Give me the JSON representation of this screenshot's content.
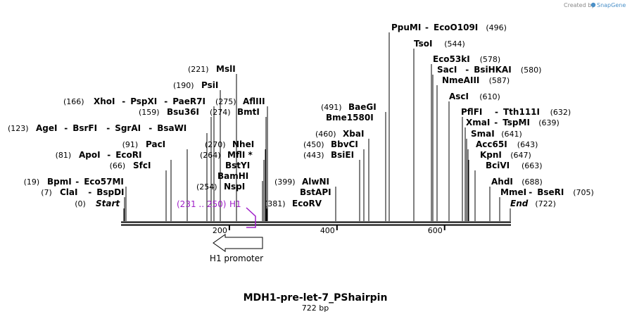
{
  "credit": {
    "prefix": "Created by",
    "brand": "SnapGene"
  },
  "map": {
    "title": "MDH1-pre-let-7_PShairpin",
    "length_label": "722 bp",
    "length": 722,
    "ticks": [
      {
        "value": 200,
        "label": "200"
      },
      {
        "value": 400,
        "label": "400"
      },
      {
        "value": 600,
        "label": "600"
      }
    ]
  },
  "features": {
    "region": {
      "range_label": "(231 .. 250)",
      "name": "H1",
      "color": "#a020c8"
    },
    "promoter": {
      "label": "H1 promoter"
    }
  },
  "sites": [
    {
      "bp": 0,
      "segments": [
        {
          "name": "Start",
          "italic": true
        }
      ],
      "pos_label": "(0)"
    },
    {
      "bp": 7,
      "segments": [
        {
          "name": "ClaI"
        },
        {
          "name": "BspDI"
        }
      ],
      "pos_label": "(7)"
    },
    {
      "bp": 19,
      "segments": [
        {
          "name": "BpmI"
        },
        {
          "name": "Eco57MI"
        }
      ],
      "pos_label": "(19)"
    },
    {
      "bp": 66,
      "segments": [
        {
          "name": "SfcI"
        }
      ],
      "pos_label": "(66)"
    },
    {
      "bp": 81,
      "segments": [
        {
          "name": "ApoI"
        },
        {
          "name": "EcoRI"
        }
      ],
      "pos_label": "(81)"
    },
    {
      "bp": 91,
      "segments": [
        {
          "name": "PacI"
        }
      ],
      "pos_label": "(91)"
    },
    {
      "bp": 123,
      "segments": [
        {
          "name": "AgeI"
        },
        {
          "name": "BsrFI"
        },
        {
          "name": "SgrAI"
        },
        {
          "name": "BsaWI"
        }
      ],
      "pos_label": "(123)"
    },
    {
      "bp": 159,
      "segments": [
        {
          "name": "Bsu36I"
        }
      ],
      "pos_label": "(159)"
    },
    {
      "bp": 166,
      "segments": [
        {
          "name": "XhoI"
        },
        {
          "name": "PspXI"
        },
        {
          "name": "PaeR7I"
        }
      ],
      "pos_label": "(166)"
    },
    {
      "bp": 190,
      "segments": [
        {
          "name": "PsiI"
        }
      ],
      "pos_label": "(190)"
    },
    {
      "bp": 221,
      "segments": [
        {
          "name": "MslI"
        }
      ],
      "pos_label": "(221)"
    },
    {
      "bp": 254,
      "segments": [
        {
          "name": "NspI"
        }
      ],
      "pos_label": "(254)"
    },
    {
      "bp": 254,
      "segments": [
        {
          "name": "BamHI"
        }
      ],
      "pos_label": ""
    },
    {
      "bp": 264,
      "segments": [
        {
          "name": "BstYI"
        }
      ],
      "pos_label": ""
    },
    {
      "bp": 264,
      "segments": [
        {
          "name": "MflI *"
        }
      ],
      "pos_label": "(264)"
    },
    {
      "bp": 270,
      "segments": [
        {
          "name": "NheI"
        }
      ],
      "pos_label": "(270)"
    },
    {
      "bp": 274,
      "segments": [
        {
          "name": "BmtI"
        }
      ],
      "pos_label": "(274)"
    },
    {
      "bp": 275,
      "segments": [
        {
          "name": "AflIII"
        }
      ],
      "pos_label": "(275)"
    },
    {
      "bp": 381,
      "segments": [
        {
          "name": "EcoRV"
        }
      ],
      "pos_label": "(381)"
    },
    {
      "bp": 399,
      "segments": [
        {
          "name": "BstAPI"
        }
      ],
      "pos_label": ""
    },
    {
      "bp": 399,
      "segments": [
        {
          "name": "AlwNI"
        }
      ],
      "pos_label": "(399)"
    },
    {
      "bp": 443,
      "segments": [
        {
          "name": "BsiEI"
        }
      ],
      "pos_label": "(443)"
    },
    {
      "bp": 450,
      "segments": [
        {
          "name": "BbvCI"
        }
      ],
      "pos_label": "(450)"
    },
    {
      "bp": 460,
      "segments": [
        {
          "name": "XbaI"
        }
      ],
      "pos_label": "(460)"
    },
    {
      "bp": 491,
      "segments": [
        {
          "name": "Bme1580I"
        }
      ],
      "pos_label": ""
    },
    {
      "bp": 491,
      "segments": [
        {
          "name": "BaeGI"
        }
      ],
      "pos_label": "(491)"
    },
    {
      "bp": 496,
      "segments": [
        {
          "name": "PpuMI"
        },
        {
          "name": "EcoO109I"
        }
      ],
      "pos_label": "(496)"
    },
    {
      "bp": 544,
      "segments": [
        {
          "name": "TsoI"
        }
      ],
      "pos_label": "(544)"
    },
    {
      "bp": 578,
      "segments": [
        {
          "name": "Eco53kI"
        }
      ],
      "pos_label": "(578)"
    },
    {
      "bp": 580,
      "segments": [
        {
          "name": "SacI"
        },
        {
          "name": "BsiHKAI"
        }
      ],
      "pos_label": "(580)"
    },
    {
      "bp": 587,
      "segments": [
        {
          "name": "NmeAIII"
        }
      ],
      "pos_label": "(587)"
    },
    {
      "bp": 610,
      "segments": [
        {
          "name": "AscI"
        }
      ],
      "pos_label": "(610)"
    },
    {
      "bp": 632,
      "segments": [
        {
          "name": "PflFI"
        },
        {
          "name": "Tth111I"
        }
      ],
      "pos_label": "(632)"
    },
    {
      "bp": 639,
      "segments": [
        {
          "name": "XmaI"
        },
        {
          "name": "TspMI"
        }
      ],
      "pos_label": "(639)"
    },
    {
      "bp": 641,
      "segments": [
        {
          "name": "SmaI"
        }
      ],
      "pos_label": "(641)"
    },
    {
      "bp": 643,
      "segments": [
        {
          "name": "Acc65I"
        }
      ],
      "pos_label": "(643)"
    },
    {
      "bp": 647,
      "segments": [
        {
          "name": "KpnI"
        }
      ],
      "pos_label": "(647)"
    },
    {
      "bp": 663,
      "segments": [
        {
          "name": "BciVI"
        }
      ],
      "pos_label": "(663)"
    },
    {
      "bp": 688,
      "segments": [
        {
          "name": "AhdI"
        }
      ],
      "pos_label": "(688)"
    },
    {
      "bp": 705,
      "segments": [
        {
          "name": "MmeI"
        },
        {
          "name": "BseRI"
        }
      ],
      "pos_label": "(705)"
    },
    {
      "bp": 722,
      "segments": [
        {
          "name": "End",
          "italic": true
        }
      ],
      "pos_label": "(722)"
    }
  ]
}
